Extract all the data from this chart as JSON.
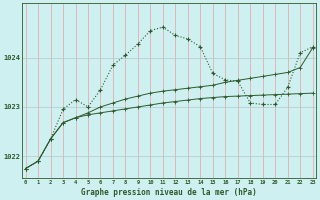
{
  "background_color": "#cff0f0",
  "grid_color_v": "#e8a0a0",
  "grid_color_h": "#b0c8c8",
  "line_color": "#2d5a2d",
  "title": "Graphe pression niveau de la mer (hPa)",
  "xlabel_hours": [
    0,
    1,
    2,
    3,
    4,
    5,
    6,
    7,
    8,
    9,
    10,
    11,
    12,
    13,
    14,
    15,
    16,
    17,
    18,
    19,
    20,
    21,
    22,
    23
  ],
  "yticks": [
    1022,
    1023,
    1024
  ],
  "ylim": [
    1021.55,
    1025.1
  ],
  "xlim": [
    -0.3,
    23.3
  ],
  "line1_x": [
    0,
    1,
    2,
    3,
    4,
    5,
    6,
    7,
    8,
    9,
    10,
    11,
    12,
    13,
    14,
    15,
    16,
    17,
    18,
    19,
    20,
    21,
    22,
    23
  ],
  "line1_y": [
    1021.75,
    1021.9,
    1022.35,
    1022.68,
    1022.78,
    1022.84,
    1022.88,
    1022.92,
    1022.96,
    1023.0,
    1023.04,
    1023.08,
    1023.11,
    1023.14,
    1023.17,
    1023.19,
    1023.21,
    1023.22,
    1023.23,
    1023.24,
    1023.25,
    1023.26,
    1023.27,
    1023.28
  ],
  "line2_x": [
    0,
    1,
    2,
    3,
    4,
    5,
    6,
    7,
    8,
    9,
    10,
    11,
    12,
    13,
    14,
    15,
    16,
    17,
    18,
    19,
    20,
    21,
    22,
    23
  ],
  "line2_y": [
    1021.75,
    1021.9,
    1022.35,
    1022.68,
    1022.78,
    1022.88,
    1023.0,
    1023.08,
    1023.16,
    1023.22,
    1023.28,
    1023.32,
    1023.35,
    1023.38,
    1023.41,
    1023.44,
    1023.5,
    1023.54,
    1023.58,
    1023.62,
    1023.66,
    1023.7,
    1023.8,
    1024.2
  ],
  "line3_x": [
    0,
    1,
    2,
    3,
    4,
    5,
    6,
    7,
    8,
    9,
    10,
    11,
    12,
    13,
    14,
    15,
    16,
    17,
    18,
    19,
    20,
    21,
    22,
    23
  ],
  "line3_y": [
    1021.75,
    1021.9,
    1022.35,
    1022.95,
    1023.15,
    1023.0,
    1023.35,
    1023.85,
    1024.05,
    1024.28,
    1024.55,
    1024.62,
    1024.45,
    1024.38,
    1024.22,
    1023.68,
    1023.55,
    1023.52,
    1023.08,
    1023.05,
    1023.05,
    1023.4,
    1024.1,
    1024.22
  ]
}
